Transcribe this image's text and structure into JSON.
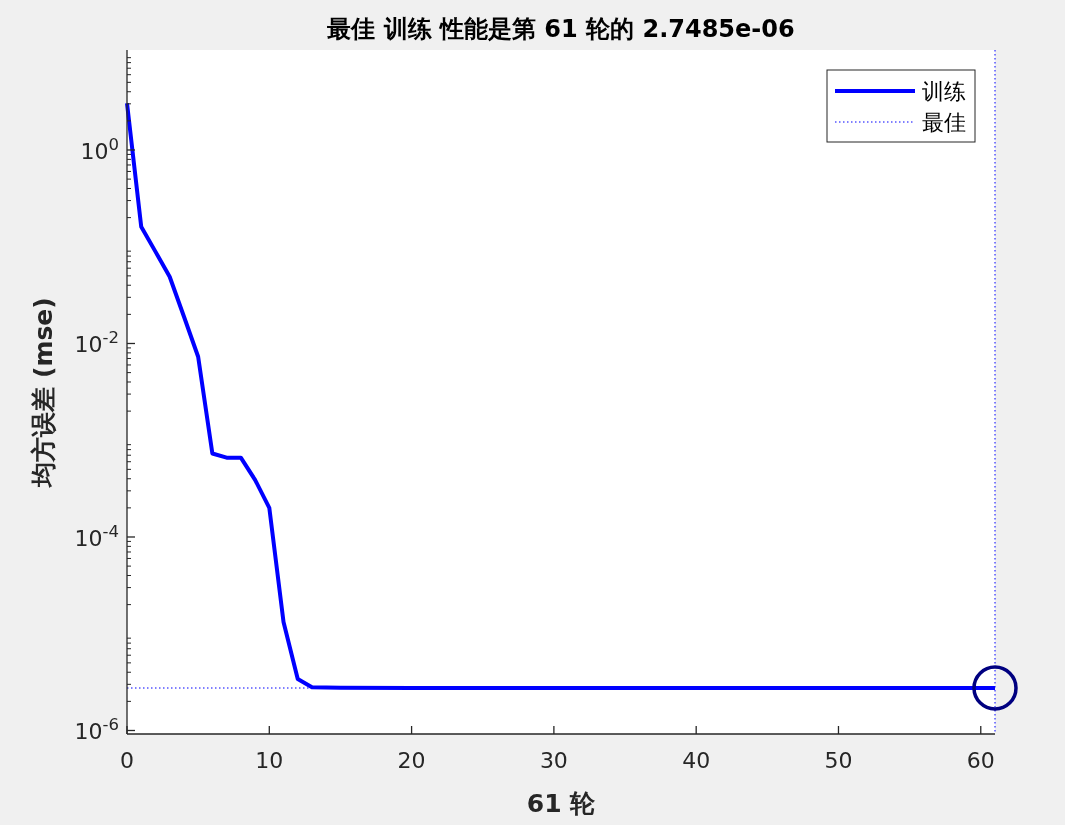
{
  "chart_data": {
    "type": "line",
    "title": "最佳 训练 性能是第 61 轮的 2.7485e-06",
    "xlabel": "61 轮",
    "ylabel": "均方误差 (mse)",
    "log": "y",
    "xlim": [
      0,
      61
    ],
    "ylim": [
      9.2e-07,
      10.8
    ],
    "xticks": [
      0,
      10,
      20,
      30,
      40,
      50,
      60
    ],
    "yticks": [
      {
        "value": 1,
        "label": "10$^{0}$"
      },
      {
        "value": 0.01,
        "label": "10$^{-2}$"
      },
      {
        "value": 0.0001,
        "label": "10$^{-4}$"
      },
      {
        "value": 1e-06,
        "label": "10$^{-6}$"
      }
    ],
    "legend": "top right",
    "series": [
      {
        "name": "训练",
        "color": "#0000ff",
        "line_style": "solid",
        "x": [
          0,
          1,
          2,
          3,
          4,
          5,
          6,
          7,
          8,
          9,
          10,
          11,
          12,
          13,
          15,
          20,
          30,
          40,
          50,
          61
        ],
        "values": [
          3.04,
          0.161,
          0.089,
          0.049,
          0.019,
          0.0073,
          0.00073,
          0.00066,
          0.00066,
          0.00039,
          0.0002,
          1.32e-05,
          3.4e-06,
          2.8e-06,
          2.76e-06,
          2.75e-06,
          2.75e-06,
          2.75e-06,
          2.75e-06,
          2.7485e-06
        ]
      },
      {
        "name": "最佳",
        "color": "#0000ff",
        "line_style": "dotted",
        "x": [
          0,
          61
        ],
        "values": [
          2.7485e-06,
          2.7485e-06
        ]
      },
      {
        "type": "scatter",
        "marker": "circle",
        "color": "#000080",
        "x": [
          61
        ],
        "values": [
          2.7485e-06
        ]
      }
    ],
    "ref_lines": [
      {
        "axis": "x",
        "value": 61,
        "color": "#0000ff",
        "line_style": "dotted"
      }
    ]
  }
}
